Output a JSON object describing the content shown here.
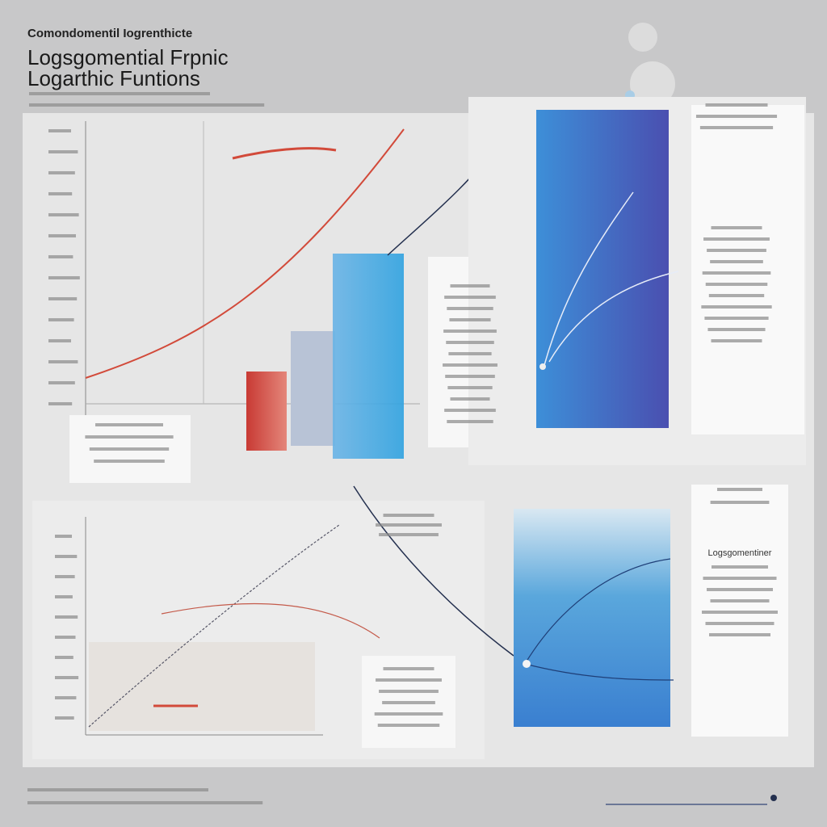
{
  "header": {
    "kicker": "Comondomentil Iogrenthicte",
    "title_line_1": "Logsgomential Frpnic",
    "title_line_2": "Logarthic Funtions"
  },
  "panels": [
    {
      "caption": "Logsgomentiner"
    }
  ]
}
